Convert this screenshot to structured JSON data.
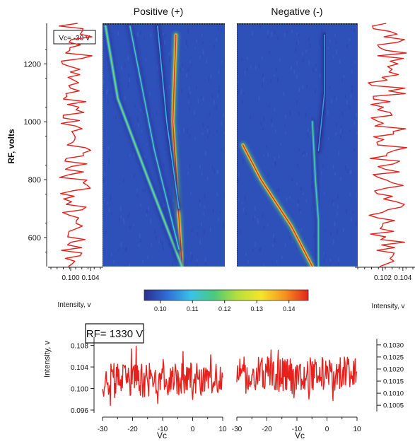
{
  "chart_data": [
    {
      "id": "heatmap-positive",
      "type": "heatmap",
      "title": "Positive (+)",
      "y_label": "RF, volts",
      "y_range": [
        500,
        1340
      ],
      "y_ticks": [
        600,
        800,
        1000,
        1200
      ],
      "x_range": [
        -30,
        10
      ],
      "ridges": [
        {
          "name": "main",
          "points": [
            [
              -4,
              500
            ],
            [
              -7,
              1000
            ],
            [
              -6,
              1300
            ]
          ],
          "peak": 0.145
        },
        {
          "name": "strong-diagonal",
          "points": [
            [
              -4,
              500
            ],
            [
              -15,
              800
            ],
            [
              -25,
              1080
            ],
            [
              -29,
              1330
            ]
          ],
          "peak": 0.12
        },
        {
          "name": "branch",
          "points": [
            [
              -5,
              560
            ],
            [
              -13,
              900
            ],
            [
              -21,
              1330
            ]
          ],
          "peak": 0.113
        },
        {
          "name": "faint",
          "points": [
            [
              -5,
              700
            ],
            [
              -9,
              1000
            ],
            [
              -12,
              1330
            ]
          ],
          "peak": 0.108
        }
      ]
    },
    {
      "id": "heatmap-negative",
      "type": "heatmap",
      "title": "Negative (-)",
      "y_range": [
        500,
        1340
      ],
      "x_range": [
        -30,
        10
      ],
      "ridges": [
        {
          "name": "curve",
          "points": [
            [
              -5,
              500
            ],
            [
              -12,
              640
            ],
            [
              -22,
              800
            ],
            [
              -28,
              920
            ]
          ],
          "peak": 0.145
        },
        {
          "name": "vertical",
          "points": [
            [
              -3,
              500
            ],
            [
              -3,
              660
            ],
            [
              -4,
              800
            ],
            [
              -5,
              1000
            ]
          ],
          "peak": 0.116
        },
        {
          "name": "faint-upper",
          "points": [
            [
              -3,
              900
            ],
            [
              -1,
              1100
            ],
            [
              -1,
              1300
            ]
          ],
          "peak": 0.106
        }
      ]
    },
    {
      "id": "profile-left",
      "type": "line",
      "annotation": "Vc= -30 V",
      "x_label": "Intensity, v",
      "x_range": [
        0.096,
        0.106
      ],
      "x_ticks": [
        "0.100",
        "0.104"
      ],
      "y_range": [
        500,
        1340
      ],
      "series_seed": 11,
      "mean": 0.101,
      "amplitude": 0.0028
    },
    {
      "id": "profile-right",
      "type": "line",
      "x_label": "Intensity, v",
      "x_range": [
        0.0995,
        0.105
      ],
      "x_ticks": [
        "0.102",
        "0.104"
      ],
      "y_range": [
        500,
        1340
      ],
      "series_seed": 23,
      "mean": 0.1025,
      "amplitude": 0.0016
    },
    {
      "id": "colorbar",
      "type": "heatmap",
      "range": [
        0.095,
        0.146
      ],
      "ticks": [
        "0.10",
        "0.11",
        "0.12",
        "0.13",
        "0.14"
      ],
      "colors": [
        "#2b2f8f",
        "#2f6fd8",
        "#39c3e8",
        "#4cc97a",
        "#b8e03a",
        "#f5e52a",
        "#f5921e",
        "#e3241e"
      ]
    },
    {
      "id": "trace-positive",
      "type": "line",
      "annotation": "RF= 1330 V",
      "y_label": "Intensity, v",
      "y_range": [
        0.096,
        0.109
      ],
      "y_ticks": [
        "0.108",
        "0.104",
        "0.100",
        "0.096"
      ],
      "x_label": "Vc",
      "x_range": [
        -30,
        10
      ],
      "x_ticks": [
        "-30",
        "-20",
        "-10",
        "0",
        "10"
      ],
      "series_seed": 37,
      "mean": 0.1015,
      "amplitude": 0.0032
    },
    {
      "id": "trace-negative",
      "type": "line",
      "x_label": "Vc",
      "x_range": [
        -30,
        10
      ],
      "x_ticks": [
        "-30",
        "-20",
        "-10",
        "0",
        "10"
      ],
      "y_range": [
        0.1003,
        0.1032
      ],
      "y_ticks_right": [
        "0.1030",
        "0.1025",
        "0.1020",
        "0.1015",
        "0.1010",
        "0.1005"
      ],
      "series_seed": 51,
      "mean": 0.1018,
      "amplitude": 0.0007
    }
  ]
}
